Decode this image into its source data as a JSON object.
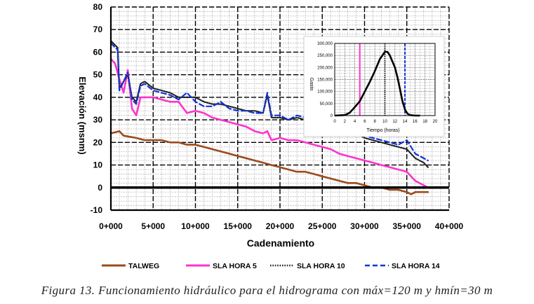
{
  "figure_caption": "Figura 13. Funcionamiento hidráulico para el hidrograma con máx=120 m y hmín=30 m",
  "chart_data": [
    {
      "type": "line",
      "xlabel": "Cadenamiento",
      "ylabel": "Elevación (msnm)",
      "xlim": [
        0,
        40000
      ],
      "ylim": [
        -10,
        80
      ],
      "x_ticks": [
        "0+000",
        "5+000",
        "10+000",
        "15+000",
        "20+000",
        "25+000",
        "30+000",
        "35+000",
        "40+000"
      ],
      "y_ticks": [
        "-10",
        "0",
        "10",
        "20",
        "30",
        "40",
        "50",
        "60",
        "70",
        "80"
      ],
      "grid": true,
      "legend_position": "bottom",
      "series": [
        {
          "name": "TALWEG",
          "color": "#9b4a1c",
          "style": "solid",
          "points": [
            [
              0,
              24
            ],
            [
              1000,
              25
            ],
            [
              1500,
              23
            ],
            [
              3000,
              22
            ],
            [
              4000,
              21
            ],
            [
              6000,
              21
            ],
            [
              7000,
              20
            ],
            [
              8000,
              20
            ],
            [
              9000,
              19
            ],
            [
              10000,
              19
            ],
            [
              11000,
              18
            ],
            [
              12000,
              17
            ],
            [
              14000,
              15
            ],
            [
              15000,
              14
            ],
            [
              16000,
              13
            ],
            [
              17000,
              12
            ],
            [
              18000,
              11
            ],
            [
              19000,
              10
            ],
            [
              20000,
              9
            ],
            [
              21000,
              8
            ],
            [
              22000,
              7
            ],
            [
              23000,
              7
            ],
            [
              24000,
              6
            ],
            [
              25000,
              5
            ],
            [
              26000,
              4
            ],
            [
              27000,
              3
            ],
            [
              28000,
              2
            ],
            [
              29000,
              2
            ],
            [
              30000,
              1
            ],
            [
              31000,
              0
            ],
            [
              32000,
              0
            ],
            [
              33000,
              -1
            ],
            [
              34000,
              -1
            ],
            [
              35000,
              -2
            ],
            [
              35500,
              -3
            ],
            [
              36000,
              -2
            ],
            [
              37500,
              -2
            ]
          ]
        },
        {
          "name": "SLA HORA 5",
          "color": "#ff33cc",
          "style": "solid",
          "points": [
            [
              0,
              57
            ],
            [
              500,
              55
            ],
            [
              1000,
              48
            ],
            [
              1500,
              42
            ],
            [
              2000,
              52
            ],
            [
              2500,
              35
            ],
            [
              3000,
              32
            ],
            [
              3500,
              40
            ],
            [
              5000,
              40
            ],
            [
              6000,
              39
            ],
            [
              7000,
              38
            ],
            [
              8000,
              38
            ],
            [
              9000,
              33
            ],
            [
              10000,
              34
            ],
            [
              11000,
              33
            ],
            [
              12000,
              31
            ],
            [
              13000,
              30
            ],
            [
              14000,
              29
            ],
            [
              15000,
              28
            ],
            [
              16000,
              27
            ],
            [
              17000,
              25
            ],
            [
              18000,
              24
            ],
            [
              18500,
              25
            ],
            [
              19000,
              21
            ],
            [
              20000,
              22
            ],
            [
              21000,
              21
            ],
            [
              22000,
              21
            ],
            [
              23000,
              20
            ],
            [
              24000,
              19
            ],
            [
              25000,
              18
            ],
            [
              26000,
              17
            ],
            [
              27000,
              15
            ],
            [
              28000,
              14
            ],
            [
              29000,
              13
            ],
            [
              30000,
              12
            ],
            [
              31000,
              11
            ],
            [
              32000,
              10
            ],
            [
              33000,
              9
            ],
            [
              34000,
              8
            ],
            [
              35000,
              7
            ],
            [
              35500,
              5
            ],
            [
              36000,
              3
            ],
            [
              37500,
              0
            ]
          ]
        },
        {
          "name": "SLA HORA 10",
          "color": "#222222",
          "style": "dotted",
          "points": [
            [
              0,
              65
            ],
            [
              800,
              62
            ],
            [
              1000,
              44
            ],
            [
              2000,
              50
            ],
            [
              2500,
              40
            ],
            [
              3000,
              38
            ],
            [
              3500,
              46
            ],
            [
              4000,
              47
            ],
            [
              5000,
              44
            ],
            [
              6000,
              43
            ],
            [
              7000,
              42
            ],
            [
              8000,
              40
            ],
            [
              9000,
              40
            ],
            [
              10000,
              40
            ],
            [
              11000,
              38
            ],
            [
              12000,
              37
            ],
            [
              13000,
              37
            ],
            [
              14000,
              36
            ],
            [
              15000,
              35
            ],
            [
              16000,
              34
            ],
            [
              17000,
              34
            ],
            [
              18000,
              33
            ],
            [
              18500,
              41
            ],
            [
              19000,
              31
            ],
            [
              20000,
              31
            ],
            [
              21000,
              30
            ],
            [
              22000,
              31
            ],
            [
              23000,
              30
            ],
            [
              25000,
              29
            ],
            [
              27000,
              26
            ],
            [
              29000,
              24
            ],
            [
              30000,
              22
            ],
            [
              31000,
              21
            ],
            [
              32000,
              20
            ],
            [
              33000,
              19
            ],
            [
              34000,
              18
            ],
            [
              35000,
              17
            ],
            [
              36000,
              13
            ],
            [
              37000,
              11
            ],
            [
              37500,
              9
            ]
          ]
        },
        {
          "name": "SLA HORA 14",
          "color": "#1133dd",
          "style": "dashed",
          "points": [
            [
              0,
              64
            ],
            [
              800,
              61
            ],
            [
              1000,
              43
            ],
            [
              2000,
              51
            ],
            [
              2500,
              39
            ],
            [
              3000,
              37
            ],
            [
              3500,
              45
            ],
            [
              4000,
              46
            ],
            [
              5000,
              43
            ],
            [
              6000,
              42
            ],
            [
              7000,
              41
            ],
            [
              8000,
              39
            ],
            [
              9000,
              42
            ],
            [
              10000,
              38
            ],
            [
              11000,
              36
            ],
            [
              12000,
              36
            ],
            [
              13000,
              38
            ],
            [
              14000,
              35
            ],
            [
              15000,
              34
            ],
            [
              16000,
              34
            ],
            [
              17000,
              33
            ],
            [
              18000,
              33
            ],
            [
              18500,
              42
            ],
            [
              19000,
              32
            ],
            [
              20000,
              32
            ],
            [
              21000,
              30
            ],
            [
              22000,
              32
            ],
            [
              23000,
              31
            ],
            [
              25000,
              30
            ],
            [
              27000,
              27
            ],
            [
              29000,
              25
            ],
            [
              30000,
              23
            ],
            [
              31000,
              22
            ],
            [
              32000,
              21
            ],
            [
              33000,
              20
            ],
            [
              34000,
              19
            ],
            [
              35000,
              21
            ],
            [
              35500,
              18
            ],
            [
              36000,
              15
            ],
            [
              37000,
              13
            ],
            [
              37500,
              12
            ]
          ]
        }
      ]
    },
    {
      "type": "line",
      "title": "",
      "xlabel": "Tiempo (horas)",
      "ylabel": "Gasto",
      "xlim": [
        0,
        20
      ],
      "ylim": [
        0,
        300000
      ],
      "x_ticks": [
        "0",
        "2",
        "4",
        "6",
        "8",
        "10",
        "12",
        "14",
        "16",
        "18",
        "20"
      ],
      "y_ticks": [
        "0",
        "50,000",
        "100,000",
        "150,000",
        "200,000",
        "250,000",
        "300,000"
      ],
      "grid": true,
      "series": [
        {
          "color": "#000000",
          "style": "solid",
          "points": [
            [
              0,
              0
            ],
            [
              2,
              2000
            ],
            [
              3,
              12000
            ],
            [
              4,
              35000
            ],
            [
              5,
              60000
            ],
            [
              6,
              100000
            ],
            [
              7,
              140000
            ],
            [
              8,
              185000
            ],
            [
              9,
              235000
            ],
            [
              10,
              265000
            ],
            [
              10.5,
              265000
            ],
            [
              11,
              250000
            ],
            [
              12,
              200000
            ],
            [
              12.5,
              160000
            ],
            [
              13,
              110000
            ],
            [
              13.5,
              60000
            ],
            [
              14,
              25000
            ],
            [
              14.5,
              8000
            ],
            [
              15,
              2000
            ],
            [
              16,
              0
            ],
            [
              17,
              0
            ]
          ]
        }
      ],
      "markers": [
        {
          "x": 5,
          "color": "#ff33cc",
          "style": "solid"
        },
        {
          "x": 10,
          "color": "#222222",
          "style": "dotted"
        },
        {
          "x": 14,
          "color": "#1133dd",
          "style": "dashed"
        }
      ]
    }
  ]
}
